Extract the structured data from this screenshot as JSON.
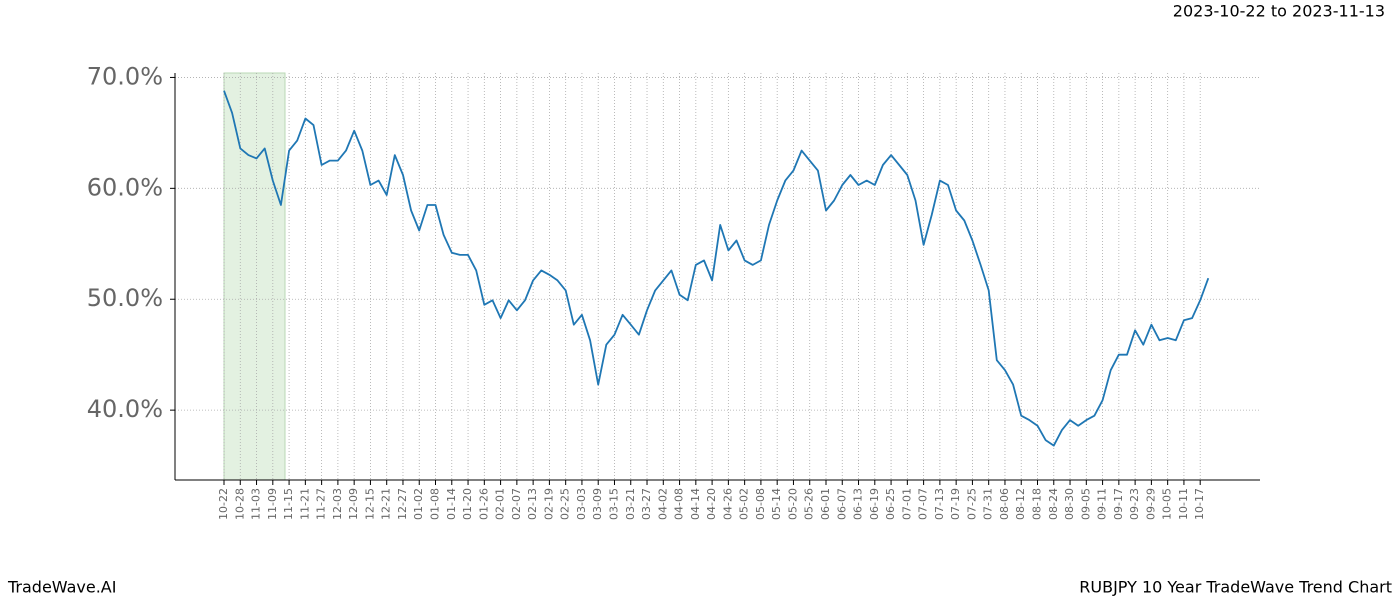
{
  "chart_data": {
    "type": "line",
    "title": "2023-10-22 to 2023-11-13",
    "footer_left": "TradeWave.AI",
    "footer_right": "RUBJPY 10 Year TradeWave Trend Chart",
    "categories": [
      "10-22",
      null,
      "10-28",
      null,
      "11-03",
      null,
      "11-09",
      null,
      "11-15",
      null,
      "11-21",
      null,
      "11-27",
      null,
      "12-03",
      null,
      "12-09",
      null,
      "12-15",
      null,
      "12-21",
      null,
      "12-27",
      null,
      "01-02",
      null,
      "01-08",
      null,
      "01-14",
      null,
      "01-20",
      null,
      "01-26",
      null,
      "02-01",
      null,
      "02-07",
      null,
      "02-13",
      null,
      "02-19",
      null,
      "02-25",
      null,
      "03-03",
      null,
      "03-09",
      null,
      "03-15",
      null,
      "03-21",
      null,
      "03-27",
      null,
      "04-02",
      null,
      "04-08",
      null,
      "04-14",
      null,
      "04-20",
      null,
      "04-26",
      null,
      "05-02",
      null,
      "05-08",
      null,
      "05-14",
      null,
      "05-20",
      null,
      "05-26",
      null,
      "06-01",
      null,
      "06-07",
      null,
      "06-13",
      null,
      "06-19",
      null,
      "06-25",
      null,
      "07-01",
      null,
      "07-07",
      null,
      "07-13",
      null,
      "07-19",
      null,
      "07-25",
      null,
      "07-31",
      null,
      "08-06",
      null,
      "08-12",
      null,
      "08-18",
      null,
      "08-24",
      null,
      "08-30",
      null,
      "09-05",
      null,
      "09-11",
      null,
      "09-17",
      null,
      "09-23",
      null,
      "09-29",
      null,
      "10-05",
      null,
      "10-11",
      null,
      "10-17",
      null
    ],
    "values": [
      68.8,
      66.8,
      63.6,
      63.0,
      62.7,
      63.6,
      60.7,
      58.5,
      63.4,
      64.3,
      66.3,
      65.7,
      62.1,
      62.5,
      62.5,
      63.4,
      65.2,
      63.4,
      60.3,
      60.7,
      59.4,
      63.0,
      61.2,
      58.0,
      56.2,
      58.5,
      58.5,
      55.8,
      54.2,
      54.0,
      54.0,
      52.6,
      49.5,
      49.9,
      48.3,
      49.9,
      49.0,
      49.9,
      51.7,
      52.6,
      52.2,
      51.7,
      50.8,
      47.7,
      48.6,
      46.3,
      42.3,
      45.9,
      46.8,
      48.6,
      47.7,
      46.8,
      49.0,
      50.8,
      51.7,
      52.6,
      50.4,
      49.9,
      53.1,
      53.5,
      51.7,
      56.7,
      54.4,
      55.3,
      53.5,
      53.1,
      53.5,
      56.7,
      58.9,
      60.7,
      61.6,
      63.4,
      62.5,
      61.6,
      58.0,
      58.9,
      60.3,
      61.2,
      60.3,
      60.7,
      60.3,
      62.1,
      63.0,
      62.1,
      61.2,
      58.9,
      54.9,
      57.6,
      60.7,
      60.3,
      58.0,
      57.1,
      55.3,
      53.1,
      50.8,
      44.5,
      43.6,
      42.3,
      39.5,
      39.1,
      38.6,
      37.3,
      36.8,
      38.2,
      39.1,
      38.6,
      39.1,
      39.5,
      40.9,
      43.6,
      45.0,
      45.0,
      47.2,
      45.9,
      47.7,
      46.3,
      46.5,
      46.3,
      48.1,
      48.3,
      49.9,
      51.9
    ],
    "color": "#1f77b4",
    "ylim": [
      33.7,
      70.4
    ],
    "yticks": [
      {
        "value": 40,
        "label": "40.0%"
      },
      {
        "value": 50,
        "label": "50.0%"
      },
      {
        "value": 60,
        "label": "60.0%"
      },
      {
        "value": 70,
        "label": "70.0%"
      }
    ],
    "grid": true
  }
}
